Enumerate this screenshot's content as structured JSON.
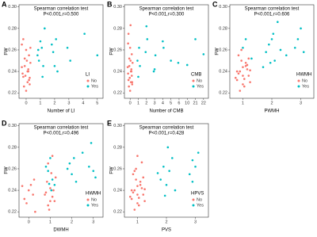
{
  "chart_data": [
    {
      "type": "scatter",
      "panel": "A",
      "title": "Spearman correlation test",
      "subtitle": "P<0.001,r=0.500",
      "x_label": "Number of LI",
      "y_label": "FW",
      "legend_title": "LI",
      "legend": "bottom-right",
      "xlim": [
        -0.5,
        5.4
      ],
      "xticks": [
        0,
        1,
        2,
        3,
        4,
        5
      ],
      "ylim": [
        0.215,
        0.302
      ],
      "yticks": [
        0.22,
        0.24,
        0.26,
        0.28,
        {
          "value": 0.3,
          "label": "0.30"
        }
      ],
      "series": [
        {
          "name": "No",
          "color": "#F8766D",
          "x": [
            -0.2,
            0.1,
            0.25,
            -0.1,
            0.05,
            -0.25,
            0.2,
            0.0,
            -0.15,
            0.15,
            0.3,
            -0.05,
            0.1,
            -0.3,
            0.2,
            0.0,
            -0.2,
            0.15,
            0.25,
            -0.1,
            0.3,
            -0.3
          ],
          "values": [
            0.235,
            0.24,
            0.228,
            0.245,
            0.25,
            0.238,
            0.232,
            0.26,
            0.226,
            0.242,
            0.248,
            0.236,
            0.23,
            0.244,
            0.255,
            0.222,
            0.27,
            0.24,
            0.234,
            0.252,
            0.262,
            0.265
          ]
        },
        {
          "name": "Yes",
          "color": "#00BFC4",
          "x": [
            0.9,
            1.1,
            1.2,
            1.9,
            2.1,
            2.2,
            0.8,
            1.0,
            2.9,
            3.1,
            1.3,
            1.8,
            2.0,
            4.1,
            5.0,
            1.15,
            0.85
          ],
          "values": [
            0.25,
            0.262,
            0.245,
            0.258,
            0.27,
            0.24,
            0.255,
            0.268,
            0.262,
            0.25,
            0.28,
            0.265,
            0.245,
            0.275,
            0.255,
            0.235,
            0.26
          ]
        }
      ]
    },
    {
      "type": "scatter",
      "panel": "B",
      "title": "Spearman correlation test",
      "subtitle": "P<0.001,r=0.300",
      "x_label": "Number of CMB",
      "y_label": "FW",
      "legend_title": "CMB",
      "legend": "bottom-right",
      "categories": [
        "0",
        "1",
        "2",
        "3",
        "4",
        "5",
        "6",
        "10",
        "21",
        "22"
      ],
      "xlim": [
        -0.7,
        9.6
      ],
      "ylim": [
        0.215,
        0.302
      ],
      "yticks": [
        0.22,
        0.24,
        0.26,
        0.28,
        {
          "value": 0.3,
          "label": "0.30"
        }
      ],
      "series": [
        {
          "name": "No",
          "color": "#F8766D",
          "x": [
            -0.2,
            0.1,
            0.25,
            -0.1,
            0.05,
            -0.25,
            0.2,
            0.0,
            -0.15,
            0.15,
            0.3,
            -0.05,
            0.1,
            -0.3,
            0.2,
            0.0,
            -0.2,
            0.15,
            0.25,
            -0.1,
            0.05,
            -0.25
          ],
          "values": [
            0.232,
            0.24,
            0.228,
            0.245,
            0.25,
            0.238,
            0.236,
            0.262,
            0.226,
            0.242,
            0.248,
            0.234,
            0.23,
            0.244,
            0.256,
            0.222,
            0.275,
            0.24,
            0.23,
            0.252,
            0.283,
            0.266
          ]
        },
        {
          "name": "Yes",
          "color": "#00BFC4",
          "x": [
            0.9,
            1.1,
            1.2,
            1.9,
            2.1,
            2.9,
            3.1,
            4.0,
            4.1,
            5.0,
            5.9,
            7.0,
            8.0,
            9.0,
            1.0,
            2.0,
            3.0
          ],
          "values": [
            0.25,
            0.262,
            0.245,
            0.258,
            0.27,
            0.24,
            0.255,
            0.268,
            0.262,
            0.25,
            0.248,
            0.246,
            0.27,
            0.256,
            0.235,
            0.282,
            0.242
          ]
        }
      ]
    },
    {
      "type": "scatter",
      "panel": "C",
      "title": "Spearman correlation test",
      "subtitle": "P<0.001,r=0.606",
      "x_label": "PWMH",
      "y_label": "FW",
      "legend_title": "HWMH",
      "legend": "bottom-right",
      "xlim": [
        0.55,
        3.45
      ],
      "xticks": [
        1,
        2,
        3
      ],
      "ylim": [
        0.215,
        0.302
      ],
      "yticks": [
        0.22,
        0.24,
        0.26,
        0.28,
        {
          "value": 0.3,
          "label": "0.30"
        }
      ],
      "series": [
        {
          "name": "No",
          "color": "#F8766D",
          "x": [
            0.8,
            0.9,
            1.0,
            1.1,
            1.2,
            0.85,
            0.95,
            1.05,
            1.15,
            0.75,
            1.25,
            1.0,
            0.9,
            1.1,
            0.8,
            1.2,
            1.0,
            0.95,
            1.05,
            1.15,
            0.85,
            1.25
          ],
          "values": [
            0.232,
            0.24,
            0.228,
            0.245,
            0.236,
            0.238,
            0.25,
            0.226,
            0.242,
            0.234,
            0.23,
            0.244,
            0.222,
            0.248,
            0.24,
            0.252,
            0.236,
            0.26,
            0.233,
            0.246,
            0.255,
            0.241
          ]
        },
        {
          "name": "Yes",
          "color": "#00BFC4",
          "x": [
            1.0,
            1.1,
            1.3,
            1.8,
            1.9,
            2.0,
            2.1,
            2.2,
            1.7,
            2.3,
            2.8,
            2.9,
            3.0,
            3.1,
            2.5,
            1.95,
            2.05
          ],
          "values": [
            0.262,
            0.27,
            0.252,
            0.258,
            0.265,
            0.27,
            0.25,
            0.286,
            0.244,
            0.26,
            0.262,
            0.27,
            0.28,
            0.258,
            0.255,
            0.248,
            0.275
          ]
        }
      ]
    },
    {
      "type": "scatter",
      "panel": "D",
      "title": "Spearman correlation test",
      "subtitle": "P<0.001,r=0.496",
      "x_label": "DWMH",
      "y_label": "FW",
      "legend_title": "HWMH",
      "legend": "bottom-right",
      "xlim": [
        -0.45,
        3.45
      ],
      "xticks": [
        0,
        1,
        2,
        3
      ],
      "ylim": [
        0.215,
        0.302
      ],
      "yticks": [
        0.22,
        0.24,
        0.26,
        0.28,
        {
          "value": 0.3,
          "label": "0.30"
        }
      ],
      "series": [
        {
          "name": "No",
          "color": "#F8766D",
          "x": [
            -0.2,
            0.0,
            0.2,
            -0.1,
            0.1,
            0.25,
            0.8,
            0.9,
            1.0,
            1.1,
            1.2,
            0.85,
            0.95,
            1.05,
            1.15,
            0.75,
            -0.3,
            0.3,
            1.25,
            0.9,
            1.1,
            1.0
          ],
          "values": [
            0.232,
            0.24,
            0.236,
            0.228,
            0.245,
            0.25,
            0.238,
            0.226,
            0.242,
            0.234,
            0.23,
            0.248,
            0.222,
            0.256,
            0.24,
            0.236,
            0.244,
            0.22,
            0.252,
            0.265,
            0.272,
            0.23
          ]
        },
        {
          "name": "Yes",
          "color": "#00BFC4",
          "x": [
            0.8,
            0.9,
            1.0,
            1.1,
            1.2,
            1.8,
            1.9,
            2.0,
            2.1,
            2.2,
            2.8,
            2.9,
            3.0,
            3.1,
            1.05,
            2.5,
            0.95
          ],
          "values": [
            0.262,
            0.258,
            0.27,
            0.25,
            0.245,
            0.26,
            0.265,
            0.255,
            0.27,
            0.248,
            0.262,
            0.284,
            0.258,
            0.252,
            0.24,
            0.275,
            0.246
          ]
        }
      ]
    },
    {
      "type": "scatter",
      "panel": "E",
      "title": "Spearman correlation test",
      "subtitle": "P<0.001,r=0.428",
      "x_label": "PVS",
      "y_label": "FW",
      "legend_title": "HPVS",
      "legend": "bottom-right",
      "xlim": [
        0.55,
        3.45
      ],
      "xticks": [
        1,
        2,
        3
      ],
      "ylim": [
        0.215,
        0.302
      ],
      "yticks": [
        0.22,
        0.24,
        0.26,
        0.28,
        {
          "value": 0.3,
          "label": "0.30"
        }
      ],
      "series": [
        {
          "name": "No",
          "color": "#F8766D",
          "x": [
            0.8,
            0.9,
            1.0,
            1.1,
            1.2,
            0.85,
            0.95,
            1.05,
            1.15,
            0.75,
            1.25,
            1.0,
            0.9,
            1.1,
            0.8,
            1.2,
            1.0,
            0.95,
            1.05,
            1.15,
            0.85,
            1.25,
            1.0,
            0.9
          ],
          "values": [
            0.232,
            0.24,
            0.228,
            0.245,
            0.236,
            0.238,
            0.25,
            0.226,
            0.242,
            0.234,
            0.23,
            0.244,
            0.222,
            0.248,
            0.24,
            0.252,
            0.236,
            0.26,
            0.233,
            0.266,
            0.255,
            0.241,
            0.272,
            0.258
          ]
        },
        {
          "name": "Yes",
          "color": "#00BFC4",
          "x": [
            1.8,
            1.9,
            2.0,
            2.1,
            2.2,
            2.3,
            2.8,
            2.9,
            3.0,
            3.1,
            1.95,
            2.05,
            2.9,
            1.7
          ],
          "values": [
            0.25,
            0.262,
            0.245,
            0.258,
            0.27,
            0.24,
            0.255,
            0.268,
            0.262,
            0.275,
            0.235,
            0.28,
            0.248,
            0.256
          ]
        }
      ]
    }
  ]
}
